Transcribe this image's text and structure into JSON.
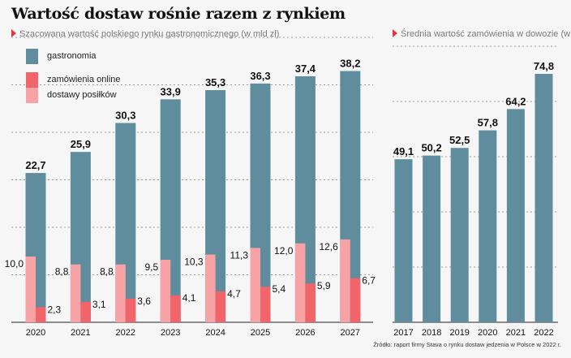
{
  "title": "Wartość dostaw rośnie razem z rynkiem",
  "colors": {
    "gastronomia": "#5f8d9d",
    "zamowienia_online": "#f0646a",
    "dostawy_posilkow": "#f7a2a5",
    "accent": "#e0383e"
  },
  "source": "Źródło: raport firmy Stava o rynku dostaw jedzenia w Polsce w 2022 r.",
  "chart_data": [
    {
      "type": "bar",
      "title": "Szacowana wartość polskiego rynku gastronomicznego (w mld zł)",
      "categories": [
        "2020",
        "2021",
        "2022",
        "2023",
        "2024",
        "2025",
        "2026",
        "2027"
      ],
      "series": [
        {
          "name": "gastronomia",
          "values": [
            22.7,
            25.9,
            30.3,
            33.9,
            35.3,
            36.3,
            37.4,
            38.2
          ],
          "labels": [
            "22,7",
            "25,9",
            "30,3",
            "33,9",
            "35,3",
            "36,3",
            "37,4",
            "38,2"
          ]
        },
        {
          "name": "dostawy posiłków",
          "values": [
            10.0,
            8.8,
            8.8,
            9.5,
            10.3,
            11.3,
            12.0,
            12.6
          ],
          "labels": [
            "10,0",
            "8,8",
            "8,8",
            "9,5",
            "10,3",
            "11,3",
            "12,0",
            "12,6"
          ]
        },
        {
          "name": "zamówienia online",
          "values": [
            2.3,
            3.1,
            3.6,
            4.1,
            4.7,
            5.4,
            5.9,
            6.7
          ],
          "labels": [
            "2,3",
            "3,1",
            "3,6",
            "4,1",
            "4,7",
            "5,4",
            "5,9",
            "6,7"
          ]
        }
      ],
      "legend": [
        "gastronomia",
        "zamówienia online",
        "dostawy posiłków"
      ],
      "legend_placement": "top-left",
      "grid": true,
      "ylim": [
        0,
        40
      ]
    },
    {
      "type": "bar",
      "title": "Średnia wartość zamówienia w dowozie (w zł)",
      "categories": [
        "2017",
        "2018",
        "2019",
        "2020",
        "2021",
        "2022"
      ],
      "values": [
        49.1,
        50.2,
        52.5,
        57.8,
        64.2,
        74.8
      ],
      "labels": [
        "49,1",
        "50,2",
        "52,5",
        "57,8",
        "64,2",
        "74,8"
      ],
      "grid": true,
      "ylim": [
        0,
        80
      ]
    }
  ]
}
